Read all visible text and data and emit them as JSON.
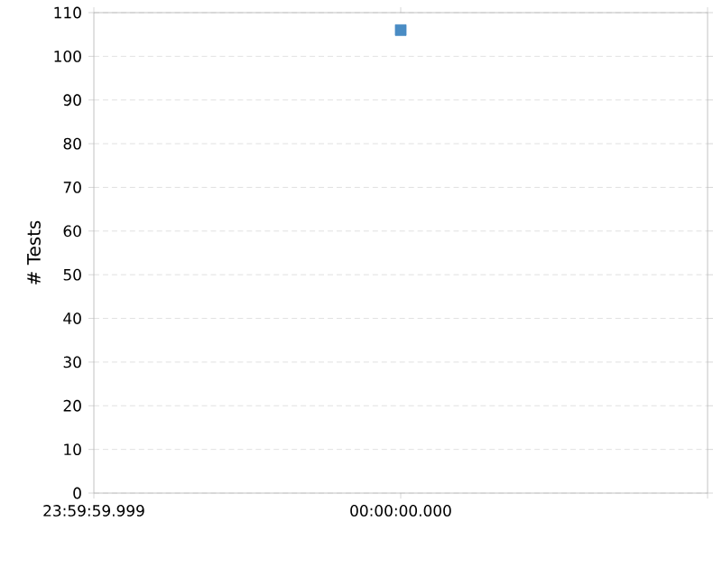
{
  "chart_data": {
    "type": "line",
    "ylabel": "# Tests",
    "marker": "square",
    "grid": "y",
    "categories": [
      "23:59:59.999",
      "00:00:00.000",
      null
    ],
    "series": [
      {
        "color": "#4a8cc4",
        "values": [
          null,
          106,
          null
        ]
      }
    ],
    "ylim": [
      0,
      110
    ],
    "yticks": [
      0,
      10,
      20,
      30,
      40,
      50,
      60,
      70,
      80,
      90,
      100,
      110
    ]
  }
}
